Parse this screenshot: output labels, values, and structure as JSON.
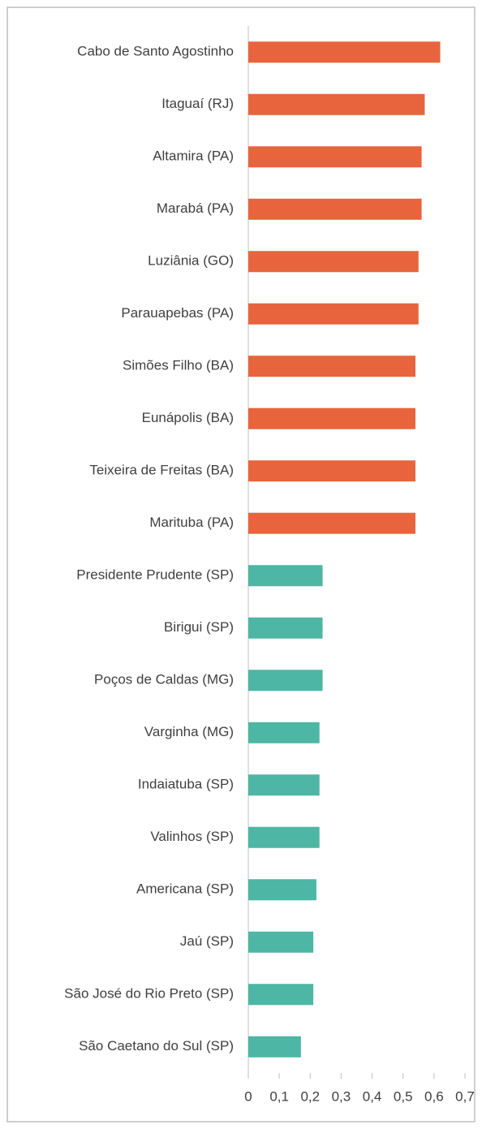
{
  "chart_data": {
    "type": "bar",
    "orientation": "horizontal",
    "categories": [
      "Cabo de Santo Agostinho",
      "Itaguaí (RJ)",
      "Altamira (PA)",
      "Marabá (PA)",
      "Luziânia (GO)",
      "Parauapebas (PA)",
      "Simões Filho (BA)",
      "Eunápolis (BA)",
      "Teixeira de Freitas (BA)",
      "Marituba (PA)",
      "Presidente Prudente (SP)",
      "Birigui (SP)",
      "Poços de Caldas (MG)",
      "Varginha (MG)",
      "Indaiatuba (SP)",
      "Valinhos (SP)",
      "Americana (SP)",
      "Jaú (SP)",
      "São José do Rio Preto (SP)",
      "São Caetano do Sul (SP)"
    ],
    "values": [
      0.62,
      0.57,
      0.56,
      0.56,
      0.55,
      0.55,
      0.54,
      0.54,
      0.54,
      0.54,
      0.24,
      0.24,
      0.24,
      0.23,
      0.23,
      0.23,
      0.22,
      0.21,
      0.21,
      0.17
    ],
    "colors": [
      "#e8643c",
      "#e8643c",
      "#e8643c",
      "#e8643c",
      "#e8643c",
      "#e8643c",
      "#e8643c",
      "#e8643c",
      "#e8643c",
      "#e8643c",
      "#4db6a4",
      "#4db6a4",
      "#4db6a4",
      "#4db6a4",
      "#4db6a4",
      "#4db6a4",
      "#4db6a4",
      "#4db6a4",
      "#4db6a4",
      "#4db6a4"
    ],
    "xlim": [
      0,
      0.7
    ],
    "xticks": [
      0,
      {
        "value": 0.1,
        "label": "0,1"
      },
      {
        "value": 0.2,
        "label": "0,2"
      },
      {
        "value": 0.3,
        "label": "0,3"
      },
      {
        "value": 0.4,
        "label": "0,4"
      },
      {
        "value": 0.5,
        "label": "0,5"
      },
      {
        "value": 0.6,
        "label": "0,6"
      },
      {
        "value": 0.7,
        "label": "0,7"
      }
    ],
    "grid": false
  }
}
